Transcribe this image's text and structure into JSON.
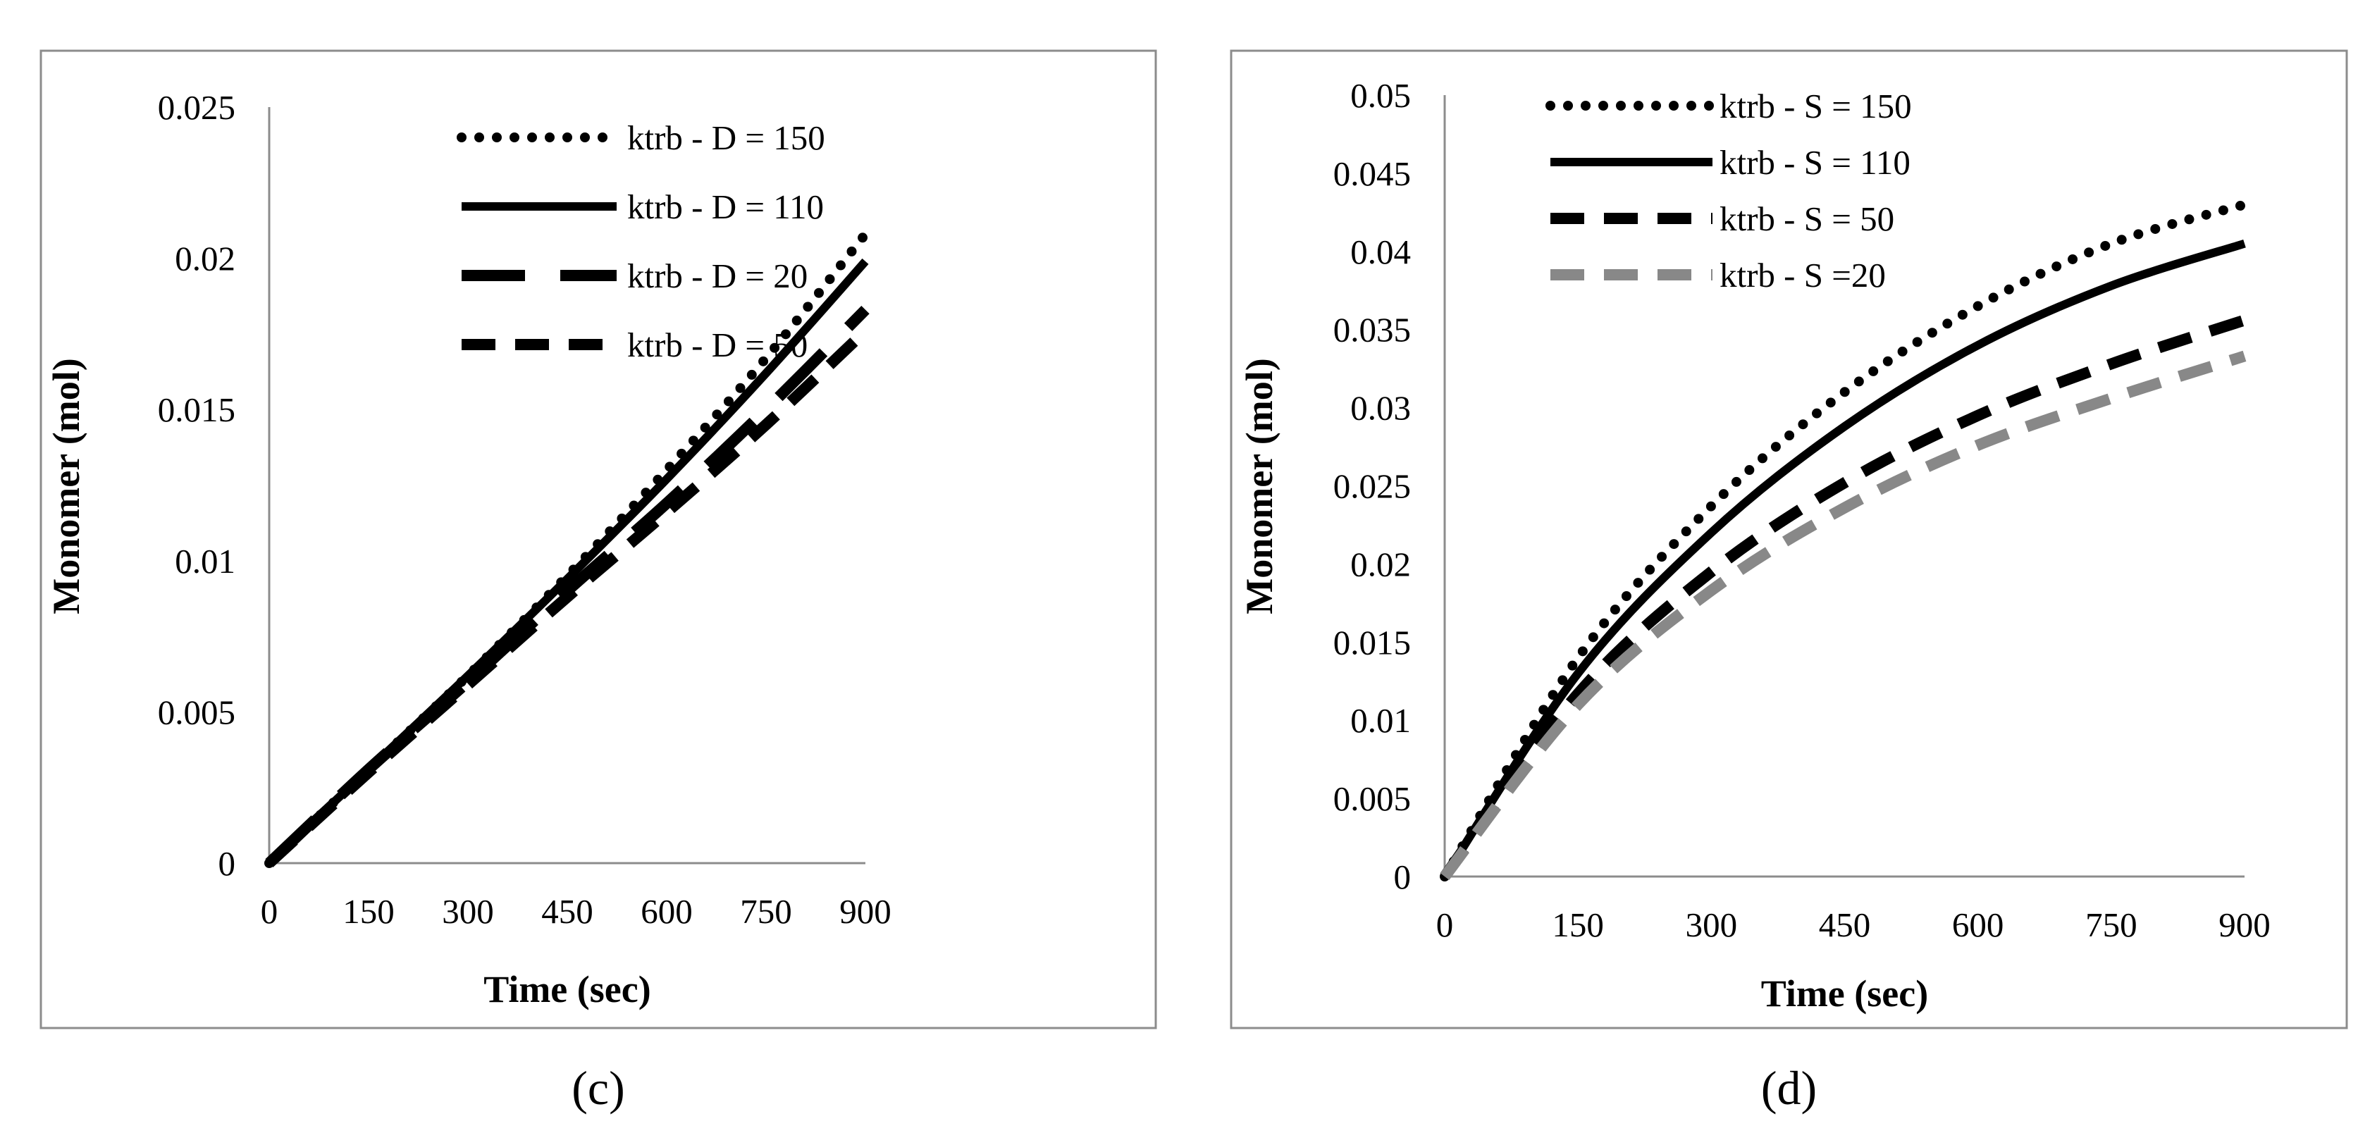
{
  "chart_data": [
    {
      "type": "line",
      "caption": "(c)",
      "xlabel": "Time (sec)",
      "ylabel": "Monomer (mol)",
      "xlim": [
        0,
        900
      ],
      "ylim": [
        0,
        0.025
      ],
      "xticks": [
        "0",
        "150",
        "300",
        "450",
        "600",
        "750",
        "900"
      ],
      "yticks": [
        "0",
        "0.005",
        "0.01",
        "0.015",
        "0.02",
        "0.025"
      ],
      "grid": false,
      "legend_position": "top-center",
      "x": [
        0,
        150,
        300,
        450,
        600,
        750,
        900
      ],
      "series": [
        {
          "name": "ktrb - D = 150",
          "style": "dotted",
          "color": "#000000",
          "values": [
            0,
            0.0031,
            0.0062,
            0.0095,
            0.013,
            0.0167,
            0.0208
          ]
        },
        {
          "name": "ktrb - D = 110",
          "style": "solid",
          "color": "#000000",
          "values": [
            0,
            0.0031,
            0.0062,
            0.0094,
            0.0127,
            0.0162,
            0.0199
          ]
        },
        {
          "name": "ktrb - D = 20",
          "style": "long-dash",
          "color": "#000000",
          "values": [
            0,
            0.0031,
            0.006,
            0.009,
            0.0119,
            0.015,
            0.0183
          ]
        },
        {
          "name": "ktrb - D = 50",
          "style": "dashed",
          "color": "#000000",
          "values": [
            0,
            0.003,
            0.0059,
            0.0088,
            0.0116,
            0.0145,
            0.0176
          ]
        }
      ]
    },
    {
      "type": "line",
      "caption": "(d)",
      "xlabel": "Time (sec)",
      "ylabel": "Monomer (mol)",
      "xlim": [
        0,
        900
      ],
      "ylim": [
        0,
        0.05
      ],
      "xticks": [
        "0",
        "150",
        "300",
        "450",
        "600",
        "750",
        "900"
      ],
      "yticks": [
        "0",
        "0.005",
        "0.01",
        "0.015",
        "0.02",
        "0.025",
        "0.03",
        "0.035",
        "0.04",
        "0.045",
        "0.05"
      ],
      "grid": false,
      "legend_position": "top-left",
      "x": [
        0,
        150,
        300,
        450,
        600,
        750,
        900
      ],
      "series": [
        {
          "name": "ktrb - S = 150",
          "style": "dotted",
          "color": "#000000",
          "values": [
            0,
            0.014,
            0.0237,
            0.031,
            0.0365,
            0.0405,
            0.043
          ]
        },
        {
          "name": "ktrb - S = 110",
          "style": "solid",
          "color": "#000000",
          "values": [
            0,
            0.013,
            0.022,
            0.0288,
            0.034,
            0.0378,
            0.0405
          ]
        },
        {
          "name": "ktrb - S = 50",
          "style": "dashed",
          "color": "#000000",
          "values": [
            0,
            0.0117,
            0.0195,
            0.0252,
            0.0295,
            0.0328,
            0.0356
          ]
        },
        {
          "name": "ktrb - S =20",
          "style": "dashed",
          "color": "#888888",
          "values": [
            0,
            0.011,
            0.0183,
            0.0236,
            0.0276,
            0.0306,
            0.0333
          ]
        }
      ]
    }
  ]
}
